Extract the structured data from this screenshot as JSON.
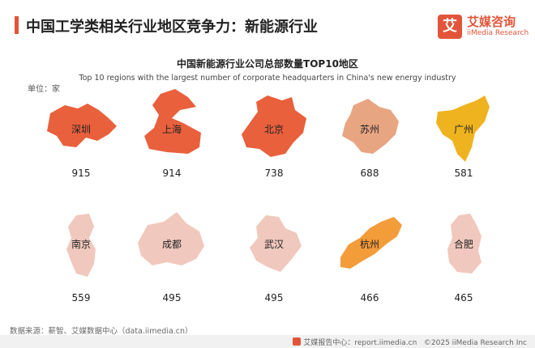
{
  "header": {
    "title": "中国工学类相关行业地区竞争力：新能源行业"
  },
  "brand": {
    "mark": "艾",
    "name_cn": "艾媒咨询",
    "name_en": "iiMedia Research"
  },
  "chart_data": {
    "type": "pictorial-map",
    "title": "中国新能源行业公司总部数量TOP10地区",
    "subtitle": "Top 10 regions with the largest number of corporate headquarters in China's new energy industry",
    "unit_label": "单位：家",
    "categories": [
      "深圳",
      "上海",
      "北京",
      "苏州",
      "广州",
      "南京",
      "成都",
      "武汉",
      "杭州",
      "合肥"
    ],
    "values": [
      915,
      914,
      738,
      688,
      581,
      559,
      495,
      495,
      466,
      465
    ],
    "colors": [
      "#e8603c",
      "#e8603c",
      "#e8603c",
      "#e8a582",
      "#efb320",
      "#f1c8bd",
      "#f1c8bd",
      "#f1c8bd",
      "#f39c3a",
      "#f1c8bd"
    ]
  },
  "source": "数据来源：薪智、艾媒数据中心（data.iimedia.cn）",
  "footer": {
    "report": "艾媒报告中心：report.iimedia.cn",
    "copyright": "©2025  iiMedia Research  Inc"
  }
}
